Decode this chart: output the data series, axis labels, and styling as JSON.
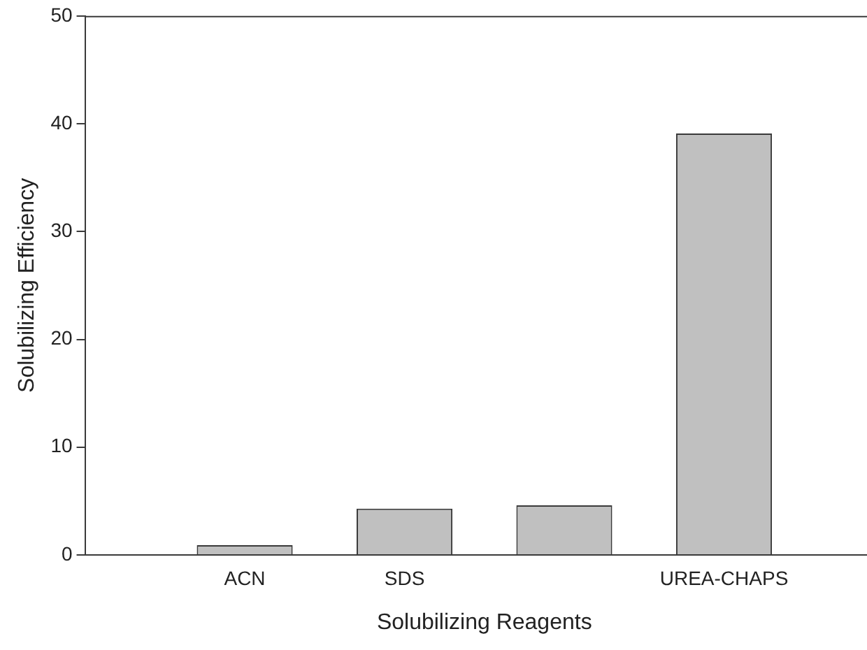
{
  "chart_data": {
    "type": "bar",
    "xlabel": "Solubilizing Reagents",
    "ylabel": "Solubilizing Efficiency",
    "categories": [
      "ACN",
      "SDS",
      null,
      "UREA-CHAPS"
    ],
    "values": [
      0.9,
      4.3,
      4.6,
      39.1
    ],
    "color": "#c0c0c0",
    "ylim": [
      0,
      50
    ],
    "yticks": [
      0,
      10,
      20,
      30,
      40,
      50
    ],
    "grid": false,
    "legend": false
  }
}
